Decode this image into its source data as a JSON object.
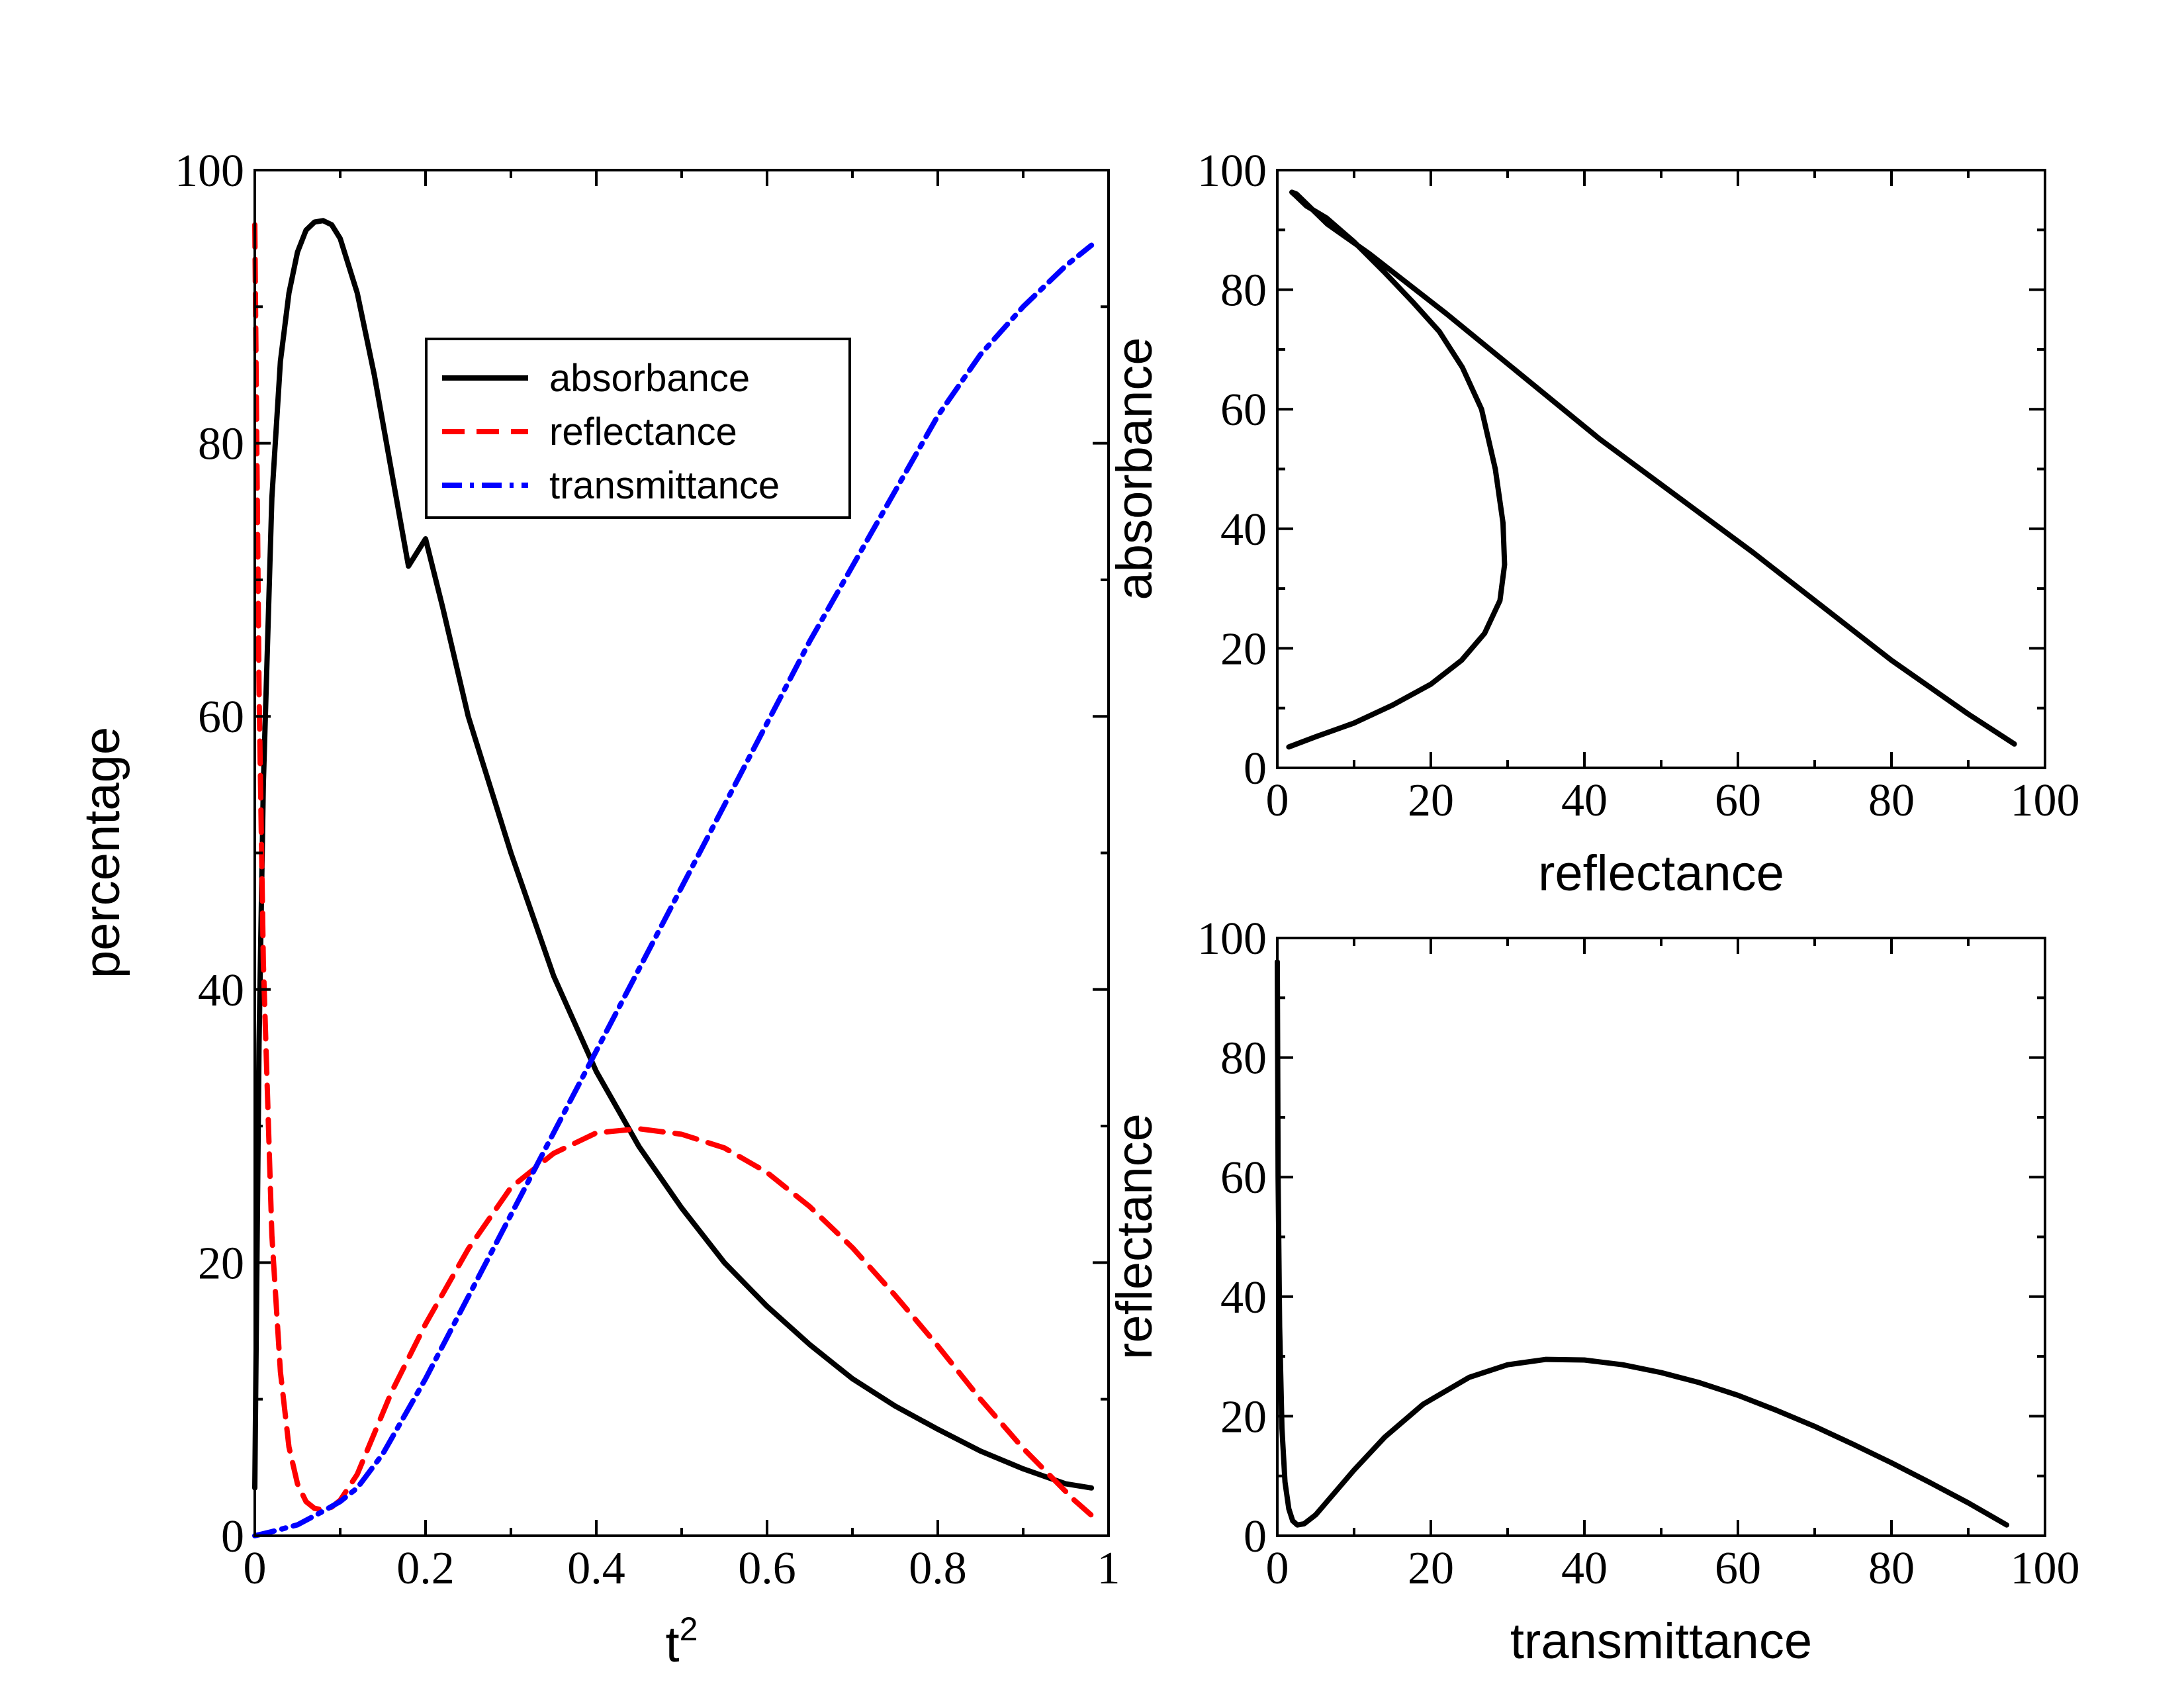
{
  "chart_data": [
    {
      "id": "main",
      "type": "line",
      "title": "",
      "xlabel": "t",
      "xlabel_sup": "2",
      "ylabel": "percentage",
      "xlim": [
        0,
        1
      ],
      "ylim": [
        0,
        100
      ],
      "xticks": [
        0,
        0.2,
        0.4,
        0.6,
        0.8,
        1
      ],
      "xtick_labels": [
        "0",
        "0.2",
        "0.4",
        "0.6",
        "0.8",
        "1"
      ],
      "yticks": [
        0,
        20,
        40,
        60,
        80,
        100
      ],
      "ytick_labels": [
        "0",
        "20",
        "40",
        "60",
        "80",
        "100"
      ],
      "legend_position": "top-center",
      "series": [
        {
          "name": "absorbance",
          "color": "#000000",
          "style": "solid",
          "x": [
            0.0,
            0.005,
            0.01,
            0.02,
            0.03,
            0.04,
            0.05,
            0.06,
            0.07,
            0.08,
            0.09,
            0.1,
            0.12,
            0.14,
            0.16,
            0.18,
            0.2,
            0.22,
            0.25,
            0.3,
            0.35,
            0.4,
            0.45,
            0.5,
            0.55,
            0.6,
            0.65,
            0.7,
            0.75,
            0.8,
            0.85,
            0.9,
            0.95,
            0.98
          ],
          "y": [
            3.5,
            36,
            55,
            76,
            86,
            91,
            94,
            95.6,
            96.2,
            96.3,
            96,
            95,
            91,
            85,
            78,
            71,
            73,
            68,
            60,
            50,
            41,
            34,
            28.5,
            24,
            20,
            16.8,
            14,
            11.5,
            9.5,
            7.8,
            6.2,
            4.9,
            3.8,
            3.5
          ]
        },
        {
          "name": "reflectance",
          "color": "#ff0000",
          "style": "dashed",
          "x": [
            0.0,
            0.005,
            0.01,
            0.02,
            0.03,
            0.04,
            0.05,
            0.06,
            0.07,
            0.08,
            0.09,
            0.1,
            0.12,
            0.14,
            0.16,
            0.18,
            0.2,
            0.25,
            0.3,
            0.35,
            0.4,
            0.45,
            0.5,
            0.55,
            0.6,
            0.65,
            0.7,
            0.75,
            0.8,
            0.85,
            0.9,
            0.93,
            0.96,
            0.98
          ],
          "y": [
            96,
            62,
            42,
            22,
            12,
            6.5,
            3.8,
            2.5,
            2.0,
            1.9,
            2.1,
            2.6,
            4.5,
            7.5,
            10.5,
            13,
            15.5,
            21,
            25.5,
            28,
            29.5,
            29.8,
            29.4,
            28.4,
            26.6,
            24.1,
            21.1,
            17.6,
            13.9,
            10.0,
            6.4,
            4.5,
            2.6,
            1.5
          ]
        },
        {
          "name": "transmittance",
          "color": "#0000ff",
          "style": "dash-dot",
          "x": [
            0.0,
            0.02,
            0.05,
            0.08,
            0.1,
            0.12,
            0.15,
            0.2,
            0.25,
            0.3,
            0.35,
            0.4,
            0.45,
            0.5,
            0.55,
            0.6,
            0.65,
            0.7,
            0.75,
            0.8,
            0.85,
            0.9,
            0.95,
            0.98
          ],
          "y": [
            0.0,
            0.3,
            0.8,
            1.8,
            2.5,
            3.5,
            6.0,
            11.5,
            17.5,
            23.5,
            29.5,
            35.5,
            41.5,
            47.5,
            53.5,
            59.5,
            65.5,
            71.0,
            76.5,
            82.0,
            86.5,
            90.0,
            93.0,
            94.5
          ]
        }
      ]
    },
    {
      "id": "absorbance-vs-reflectance",
      "type": "line",
      "title": "",
      "xlabel": "reflectance",
      "ylabel": "absorbance",
      "xlim": [
        0,
        100
      ],
      "ylim": [
        0,
        100
      ],
      "xticks": [
        0,
        20,
        40,
        60,
        80,
        100
      ],
      "xtick_labels": [
        "0",
        "20",
        "40",
        "60",
        "80",
        "100"
      ],
      "yticks": [
        0,
        20,
        40,
        60,
        80,
        100
      ],
      "ytick_labels": [
        "0",
        "20",
        "40",
        "60",
        "80",
        "100"
      ],
      "series": [
        {
          "name": "absorbance",
          "color": "#000000",
          "style": "solid",
          "x": [
            1.5,
            5,
            10,
            15,
            20,
            24,
            27,
            29,
            29.6,
            29.4,
            28.4,
            26.6,
            24.1,
            21.1,
            17.6,
            13.9,
            10.0,
            6.4,
            3.8,
            2.5,
            1.9,
            2.5,
            6.5,
            12,
            22,
            42,
            62,
            80,
            90,
            96
          ],
          "y": [
            3.5,
            5.2,
            7.5,
            10.5,
            14,
            18,
            22.5,
            28,
            34,
            41,
            50,
            60,
            67,
            73,
            78,
            83,
            88,
            92,
            94,
            95.6,
            96.3,
            96,
            91,
            86,
            76,
            55,
            36,
            18,
            9,
            4
          ]
        }
      ]
    },
    {
      "id": "reflectance-vs-transmittance",
      "type": "line",
      "title": "",
      "xlabel": "transmittance",
      "ylabel": "reflectance",
      "xlim": [
        0,
        100
      ],
      "ylim": [
        0,
        100
      ],
      "xticks": [
        0,
        20,
        40,
        60,
        80,
        100
      ],
      "xtick_labels": [
        "0",
        "20",
        "40",
        "60",
        "80",
        "100"
      ],
      "yticks": [
        0,
        20,
        40,
        60,
        80,
        100
      ],
      "ytick_labels": [
        "0",
        "20",
        "40",
        "60",
        "80",
        "100"
      ],
      "series": [
        {
          "name": "reflectance",
          "color": "#000000",
          "style": "solid",
          "x": [
            0.0,
            0.1,
            0.3,
            0.6,
            1.0,
            1.5,
            2.0,
            2.6,
            3.5,
            5,
            7,
            10,
            14,
            19,
            25,
            30,
            35,
            40,
            45,
            50,
            55,
            60,
            65,
            70,
            75,
            80,
            85,
            90,
            95
          ],
          "y": [
            96,
            60,
            35,
            18,
            9,
            4.5,
            2.5,
            1.8,
            2.0,
            3.5,
            6.5,
            11,
            16.5,
            22,
            26.5,
            28.6,
            29.5,
            29.4,
            28.6,
            27.3,
            25.6,
            23.5,
            21.0,
            18.3,
            15.3,
            12.2,
            8.9,
            5.5,
            1.8
          ]
        }
      ]
    }
  ]
}
